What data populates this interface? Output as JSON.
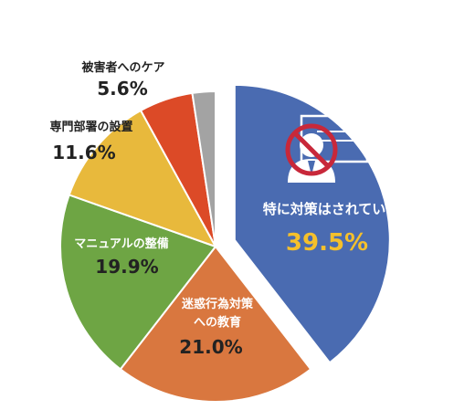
{
  "chart_data": {
    "type": "pie",
    "slices": [
      {
        "label": "特に対策はされていない",
        "value": 39.5,
        "value_label": "39.5%",
        "color": "#4a6bb1"
      },
      {
        "label": "迷惑行為対策への教育",
        "label_lines": [
          "迷惑行為対策",
          "への教育"
        ],
        "value": 21.0,
        "value_label": "21.0%",
        "color": "#d9773f"
      },
      {
        "label": "マニュアルの整備",
        "value": 19.9,
        "value_label": "19.9%",
        "color": "#6ea544"
      },
      {
        "label": "専門部署の設置",
        "value": 11.6,
        "value_label": "11.6%",
        "color": "#e8b93c"
      },
      {
        "label": "被害者へのケア",
        "value": 5.6,
        "value_label": "5.6%",
        "color": "#dc4a27"
      },
      {
        "label": "",
        "value": 2.4,
        "value_label": "",
        "color": "#a3a3a3"
      }
    ],
    "start_angle": "top",
    "direction": "clockwise",
    "exploded_slice": 0
  },
  "icon": {
    "name": "no-harassment-icon",
    "color": "#ffffff",
    "prohibit_color": "#c8283a"
  },
  "colors": {
    "inside_label": "#ffffff",
    "highlight_value": "#f5c02c",
    "outside_label": "#222222"
  }
}
